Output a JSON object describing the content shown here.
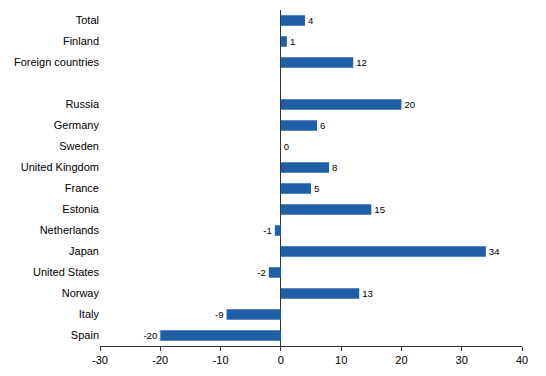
{
  "chart_data": {
    "type": "bar",
    "orientation": "horizontal",
    "categories": [
      "Total",
      "Finland",
      "Foreign countries",
      null,
      "Russia",
      "Germany",
      "Sweden",
      "United Kingdom",
      "France",
      "Estonia",
      "Netherlands",
      "Japan",
      "United States",
      "Norway",
      "Italy",
      "Spain"
    ],
    "values": [
      4,
      1,
      12,
      null,
      20,
      6,
      0,
      8,
      5,
      15,
      -1,
      34,
      -2,
      13,
      -9,
      -20
    ],
    "color": "#1f5fa8",
    "xlim": [
      -30,
      40
    ],
    "xticks": [
      -30,
      -20,
      -10,
      0,
      10,
      20,
      30,
      40
    ],
    "grid": false,
    "data_labels": true
  }
}
